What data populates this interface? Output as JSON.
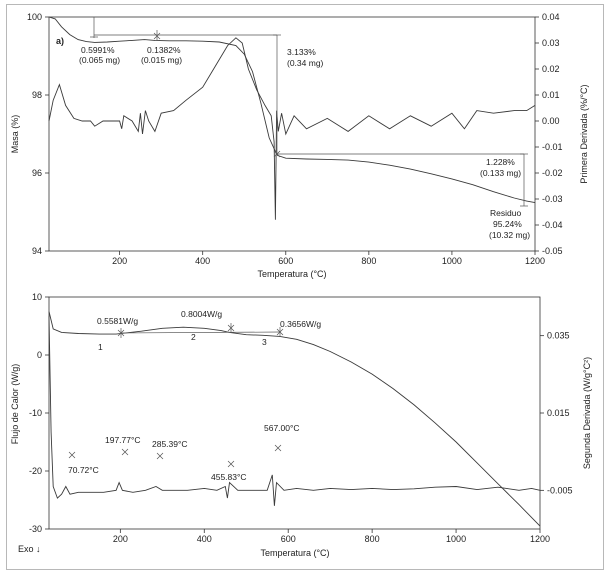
{
  "chart_data": [
    {
      "type": "line",
      "panel_label": "a)",
      "xlabel": "Temperatura (°C)",
      "ylabel": "Masa (%)",
      "y2label": "Primera Derivada (%/°C)",
      "xlim": [
        30,
        1200
      ],
      "ylim": [
        94,
        100
      ],
      "y2lim": [
        -0.05,
        0.04
      ],
      "xticks": [
        200,
        400,
        600,
        800,
        1000,
        1200
      ],
      "yticks": [
        94,
        96,
        98,
        100
      ],
      "y2ticks": [
        0.04,
        0.03,
        0.02,
        0.01,
        0.0,
        -0.01,
        -0.02,
        -0.03,
        -0.04,
        -0.05
      ],
      "grid": false,
      "series": [
        {
          "axis": "left",
          "x": [
            30,
            45,
            60,
            80,
            100,
            120,
            140,
            170,
            200,
            230,
            260,
            285,
            320,
            360,
            400,
            440,
            480,
            500,
            520,
            540,
            560,
            575,
            580,
            600,
            650,
            700,
            750,
            800,
            850,
            900,
            950,
            1000,
            1050,
            1100,
            1150,
            1180,
            1200
          ],
          "y": [
            100.0,
            99.95,
            99.75,
            99.55,
            99.42,
            99.37,
            99.35,
            99.36,
            99.38,
            99.4,
            99.42,
            99.4,
            99.39,
            99.39,
            99.38,
            99.36,
            99.27,
            99.05,
            98.6,
            97.8,
            96.9,
            96.55,
            96.45,
            96.38,
            96.36,
            96.35,
            96.33,
            96.28,
            96.2,
            96.1,
            95.98,
            95.85,
            95.7,
            95.52,
            95.36,
            95.28,
            95.24
          ]
        },
        {
          "axis": "right",
          "x": [
            30,
            40,
            55,
            70,
            90,
            110,
            130,
            140,
            160,
            180,
            200,
            205,
            210,
            230,
            245,
            250,
            255,
            262,
            270,
            285,
            300,
            330,
            360,
            400,
            430,
            460,
            480,
            495,
            510,
            530,
            550,
            565,
            572,
            575,
            578,
            582,
            590,
            600,
            620,
            650,
            700,
            750,
            800,
            850,
            900,
            950,
            1000,
            1030,
            1060,
            1100,
            1150,
            1180,
            1200
          ],
          "y": [
            0.0,
            0.008,
            0.014,
            0.006,
            0.001,
            0.0,
            0.0,
            -0.002,
            0.0,
            0.0,
            0.0,
            -0.003,
            0.002,
            0.0,
            -0.004,
            0.003,
            -0.005,
            0.004,
            0.0,
            -0.004,
            0.003,
            0.004,
            0.008,
            0.013,
            0.021,
            0.029,
            0.032,
            0.03,
            0.02,
            0.012,
            0.006,
            0.002,
            -0.008,
            -0.038,
            0.004,
            -0.004,
            0.003,
            -0.005,
            0.002,
            -0.003,
            0.001,
            -0.004,
            0.002,
            -0.003,
            0.002,
            -0.002,
            0.003,
            -0.003,
            0.004,
            0.003,
            0.004,
            0.004,
            0.006
          ]
        }
      ],
      "annotations": [
        {
          "lines": [
            "0.5991%",
            "(0.065 mg)"
          ]
        },
        {
          "lines": [
            "0.1382%",
            "(0.015 mg)"
          ]
        },
        {
          "lines": [
            "3.133%",
            "(0.34 mg)"
          ]
        },
        {
          "lines": [
            "1.228%",
            "(0.133 mg)"
          ]
        },
        {
          "lines": [
            "Residuo",
            "95.24%",
            "(10.32 mg)"
          ]
        }
      ]
    },
    {
      "type": "line",
      "xlabel": "Temperatura (°C)",
      "ylabel": "Flujo de Calor (W/g)",
      "y2label": "Segunda Derivada (W/g°C²)",
      "exo_label": "Exo ↓",
      "xlim": [
        30,
        1200
      ],
      "ylim": [
        -30,
        10
      ],
      "y2lim": [
        -0.015,
        0.045
      ],
      "xticks": [
        200,
        400,
        600,
        800,
        1000,
        1200
      ],
      "yticks": [
        10,
        0,
        -10,
        -20,
        -30
      ],
      "y2ticks": [
        0.035,
        0.015,
        -0.005
      ],
      "grid": false,
      "series": [
        {
          "axis": "left",
          "x": [
            30,
            40,
            60,
            100,
            150,
            190,
            250,
            300,
            350,
            400,
            440,
            460,
            500,
            540,
            580,
            620,
            660,
            700,
            750,
            800,
            850,
            900,
            950,
            1000,
            1050,
            1100,
            1150,
            1200
          ],
          "y": [
            7.5,
            4.5,
            3.9,
            3.7,
            3.6,
            3.6,
            4.1,
            4.6,
            4.8,
            4.6,
            4.2,
            3.9,
            3.5,
            3.4,
            3.2,
            2.7,
            1.8,
            0.6,
            -1.2,
            -3.3,
            -5.8,
            -8.6,
            -11.7,
            -15.0,
            -18.6,
            -22.2,
            -25.8,
            -29.5
          ]
        },
        {
          "axis": "right",
          "x": [
            30,
            35,
            40,
            50,
            60,
            70,
            80,
            100,
            130,
            160,
            190,
            197,
            205,
            230,
            260,
            285,
            300,
            330,
            360,
            400,
            430,
            450,
            455,
            460,
            480,
            520,
            550,
            562,
            567,
            572,
            590,
            620,
            660,
            700,
            750,
            800,
            850,
            900,
            950,
            1000,
            1050,
            1100,
            1150,
            1180,
            1200
          ],
          "y": [
            0.04,
            0.01,
            -0.004,
            -0.007,
            -0.006,
            -0.004,
            -0.006,
            -0.0055,
            -0.0055,
            -0.0055,
            -0.005,
            -0.003,
            -0.005,
            -0.0055,
            -0.005,
            -0.004,
            -0.005,
            -0.005,
            -0.005,
            -0.0045,
            -0.005,
            -0.004,
            -0.007,
            -0.003,
            -0.005,
            -0.005,
            -0.005,
            -0.001,
            -0.009,
            -0.003,
            -0.005,
            -0.0045,
            -0.005,
            -0.0045,
            -0.0048,
            -0.0045,
            -0.0048,
            -0.0046,
            -0.0042,
            -0.004,
            -0.0048,
            -0.0042,
            -0.005,
            -0.0045,
            -0.005
          ]
        }
      ],
      "annotations": [
        {
          "lines": [
            "0.5581W/g"
          ]
        },
        {
          "lines": [
            "0.8004W/g"
          ]
        },
        {
          "lines": [
            "0.3656W/g"
          ]
        },
        {
          "lines": [
            "1"
          ]
        },
        {
          "lines": [
            "2"
          ]
        },
        {
          "lines": [
            "3"
          ]
        },
        {
          "lines": [
            "197.77°C"
          ]
        },
        {
          "lines": [
            "285.39°C"
          ]
        },
        {
          "lines": [
            "567.00°C"
          ]
        },
        {
          "lines": [
            "70.72°C"
          ]
        },
        {
          "lines": [
            "455.83°C"
          ]
        }
      ]
    }
  ]
}
